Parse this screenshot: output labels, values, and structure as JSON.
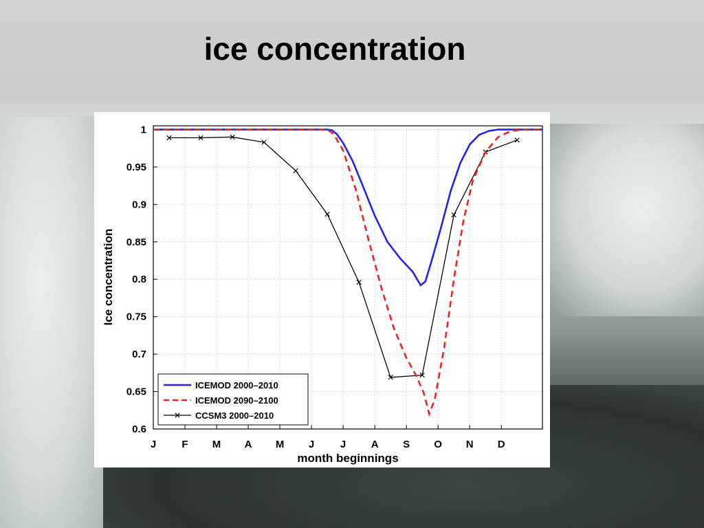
{
  "slide": {
    "title": "ice concentration"
  },
  "chart_data": {
    "type": "line",
    "xlabel": "month beginnings",
    "ylabel": "Ice concentration",
    "xlim": [
      0,
      12.3
    ],
    "ylim": [
      0.6,
      1.005
    ],
    "yticks": [
      0.6,
      0.65,
      0.7,
      0.75,
      0.8,
      0.85,
      0.9,
      0.95,
      1
    ],
    "ytick_labels": [
      "0.6",
      "0.65",
      "0.7",
      "0.75",
      "0.8",
      "0.85",
      "0.9",
      "0.95",
      "1"
    ],
    "xtick_labels": [
      "J",
      "F",
      "M",
      "A",
      "M",
      "J",
      "J",
      "A",
      "S",
      "O",
      "N",
      "D"
    ],
    "grid": true,
    "legend_position": "bottom-left",
    "series": [
      {
        "name": "ICEMOD 2000–2010",
        "color": "#2222ee",
        "style": "solid",
        "x": [
          0,
          5.5,
          5.65,
          5.8,
          6.0,
          6.3,
          6.6,
          7.0,
          7.4,
          7.8,
          8.2,
          8.45,
          8.6,
          8.8,
          9.1,
          9.4,
          9.7,
          10.0,
          10.3,
          10.6,
          10.9,
          11.3,
          12.3
        ],
        "y": [
          1.0,
          1.0,
          0.999,
          0.994,
          0.982,
          0.958,
          0.927,
          0.885,
          0.85,
          0.828,
          0.81,
          0.792,
          0.797,
          0.825,
          0.87,
          0.918,
          0.955,
          0.98,
          0.993,
          0.998,
          1.0,
          1.0,
          1.0
        ]
      },
      {
        "name": "ICEMOD 2090–2100",
        "color": "#ee2222",
        "style": "dashed",
        "x": [
          0,
          5.5,
          5.7,
          6.0,
          6.4,
          6.8,
          7.2,
          7.6,
          8.0,
          8.3,
          8.55,
          8.72,
          8.9,
          9.2,
          9.5,
          9.8,
          10.1,
          10.5,
          10.9,
          11.3,
          11.7,
          12.3
        ],
        "y": [
          1.0,
          1.0,
          0.994,
          0.972,
          0.92,
          0.853,
          0.79,
          0.735,
          0.695,
          0.672,
          0.648,
          0.62,
          0.64,
          0.71,
          0.8,
          0.878,
          0.932,
          0.97,
          0.99,
          0.998,
          1.0,
          1.0
        ]
      },
      {
        "name": "CCSM3 2000–2010",
        "color": "#000000",
        "style": "solid-x-markers",
        "x": [
          0.5,
          1.5,
          2.5,
          3.5,
          4.5,
          5.5,
          6.5,
          7.5,
          8.5,
          9.5,
          10.5,
          11.5
        ],
        "y": [
          0.989,
          0.989,
          0.99,
          0.983,
          0.945,
          0.887,
          0.796,
          0.669,
          0.672,
          0.886,
          0.97,
          0.986
        ]
      }
    ]
  }
}
